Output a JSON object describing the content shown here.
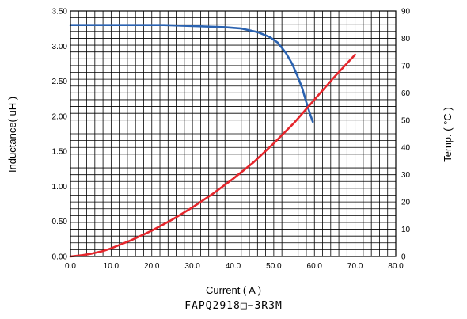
{
  "chart_data": {
    "type": "line",
    "xlabel": "Current ( A )",
    "ylabel_left": "Inductance( uH )",
    "ylabel_right": "Temp. ( °C )",
    "caption": "FAPQ2918□−3R3M",
    "xlim": [
      0,
      80
    ],
    "ylim_left": [
      0,
      3.5
    ],
    "ylim_right": [
      0,
      90
    ],
    "x_ticks": [
      "0.0",
      "10.0",
      "20.0",
      "30.0",
      "40.0",
      "50.0",
      "60.0",
      "70.0",
      "80.0"
    ],
    "y_left_ticks": [
      "0.00",
      "0.50",
      "1.00",
      "1.50",
      "2.00",
      "2.50",
      "3.00",
      "3.50"
    ],
    "y_right_ticks": [
      "0",
      "10",
      "20",
      "30",
      "40",
      "50",
      "60",
      "70",
      "80",
      "90"
    ],
    "grid": true,
    "series": [
      {
        "axis": "left",
        "color": "#2a62b0",
        "x": [
          0,
          10,
          20,
          23,
          28,
          33,
          38,
          42,
          46,
          49,
          51,
          53,
          54.5,
          56,
          57,
          58,
          59,
          59.6
        ],
        "values": [
          3.3,
          3.3,
          3.3,
          3.3,
          3.29,
          3.28,
          3.27,
          3.25,
          3.2,
          3.13,
          3.05,
          2.9,
          2.75,
          2.55,
          2.4,
          2.2,
          2.02,
          1.92
        ]
      },
      {
        "axis": "right",
        "color": "#e5262c",
        "x": [
          0,
          3,
          5,
          8,
          10,
          15,
          20,
          25,
          30,
          35,
          40,
          45,
          50,
          55,
          60,
          65,
          70
        ],
        "values": [
          0,
          0.5,
          1,
          2,
          3,
          6,
          9.5,
          13.5,
          18,
          23,
          28.5,
          34.5,
          41.5,
          49,
          57.5,
          66,
          74
        ]
      }
    ]
  }
}
